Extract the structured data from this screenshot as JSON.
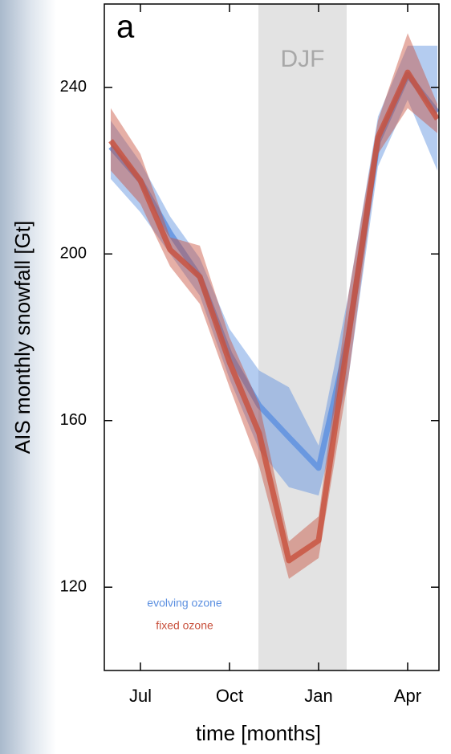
{
  "chart_data": {
    "type": "line",
    "title": "a",
    "categories": [
      null,
      "Jul",
      null,
      null,
      "Oct",
      null,
      null,
      "Jan",
      null,
      null,
      "Apr",
      null
    ],
    "xlabel": "time [months]",
    "ylabel": "AIS monthly snowfall [Gt]",
    "ylim": [
      100,
      260
    ],
    "yticks": [
      120,
      160,
      200,
      240
    ],
    "shade": {
      "label": "DJF",
      "from": 5,
      "to": 8,
      "color": "#e3e3e3"
    },
    "series": [
      {
        "name": "evolving ozone",
        "color": "#5b8fe0",
        "values": [
          225.7,
          217.6,
          205,
          194.5,
          176,
          163.6,
          156,
          148.6,
          180,
          227,
          243,
          234
        ],
        "lower": [
          218,
          210,
          200,
          190,
          170,
          153,
          144,
          142,
          170,
          221,
          237,
          220
        ],
        "upper": [
          232,
          222,
          209,
          199,
          182,
          172,
          168,
          154,
          190,
          233,
          250,
          250
        ]
      },
      {
        "name": "fixed ozone",
        "color": "#c8503c",
        "values": [
          227.2,
          217.6,
          201,
          194.5,
          174,
          156.9,
          126.4,
          131.2,
          180,
          228,
          243.6,
          232.4
        ],
        "lower": [
          220,
          212,
          197,
          188,
          168,
          149,
          122,
          127,
          170,
          224,
          235,
          229
        ],
        "upper": [
          235,
          224,
          204,
          202,
          180,
          164,
          131,
          137,
          190,
          232,
          253,
          236
        ]
      }
    ]
  }
}
